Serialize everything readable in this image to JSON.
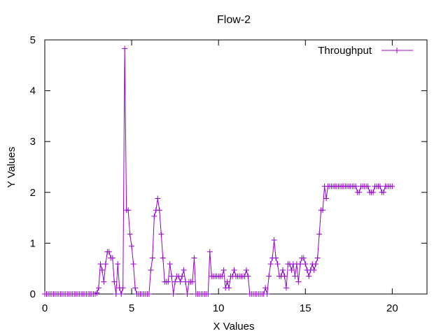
{
  "chart_data": {
    "type": "line",
    "title": "Flow-2",
    "xlabel": "X Values",
    "ylabel": "Y Values",
    "xlim": [
      0,
      22
    ],
    "ylim": [
      0,
      5
    ],
    "xticks": [
      0,
      5,
      10,
      15,
      20
    ],
    "yticks": [
      0,
      1,
      2,
      3,
      4,
      5
    ],
    "grid": false,
    "legend": "top-right",
    "series": [
      {
        "name": "Throughput",
        "color": "#9400d3",
        "marker": "plus",
        "x": [
          0,
          0.1,
          0.2,
          0.3,
          0.4,
          0.5,
          0.6,
          0.7,
          0.8,
          0.9,
          1.0,
          1.1,
          1.2,
          1.3,
          1.4,
          1.5,
          1.6,
          1.7,
          1.8,
          1.9,
          2.0,
          2.1,
          2.2,
          2.3,
          2.4,
          2.5,
          2.6,
          2.7,
          2.8,
          2.9,
          3.0,
          3.1,
          3.2,
          3.3,
          3.4,
          3.5,
          3.6,
          3.7,
          3.8,
          3.9,
          4.0,
          4.1,
          4.2,
          4.3,
          4.4,
          4.5,
          4.6,
          4.7,
          4.8,
          4.9,
          5.0,
          5.1,
          5.2,
          5.3,
          5.4,
          5.5,
          5.6,
          5.7,
          5.8,
          5.9,
          6.0,
          6.1,
          6.2,
          6.3,
          6.4,
          6.5,
          6.6,
          6.7,
          6.8,
          6.9,
          7.0,
          7.1,
          7.2,
          7.3,
          7.4,
          7.5,
          7.6,
          7.7,
          7.8,
          7.9,
          8.0,
          8.1,
          8.2,
          8.3,
          8.4,
          8.5,
          8.6,
          8.7,
          8.8,
          8.9,
          9.0,
          9.1,
          9.2,
          9.3,
          9.4,
          9.5,
          9.6,
          9.7,
          9.8,
          9.9,
          10.0,
          10.1,
          10.2,
          10.3,
          10.4,
          10.5,
          10.6,
          10.7,
          10.8,
          10.9,
          11.0,
          11.1,
          11.2,
          11.3,
          11.4,
          11.5,
          11.6,
          11.7,
          11.8,
          11.9,
          12.0,
          12.1,
          12.2,
          12.3,
          12.4,
          12.5,
          12.6,
          12.7,
          12.8,
          12.9,
          13.0,
          13.1,
          13.2,
          13.3,
          13.4,
          13.5,
          13.6,
          13.7,
          13.8,
          13.9,
          14.0,
          14.1,
          14.2,
          14.3,
          14.4,
          14.5,
          14.6,
          14.7,
          14.8,
          14.9,
          15.0,
          15.1,
          15.2,
          15.3,
          15.4,
          15.5,
          15.6,
          15.7,
          15.8,
          15.9,
          16.0,
          16.1,
          16.2,
          16.3,
          16.4,
          16.5,
          16.6,
          16.7,
          16.8,
          16.9,
          17.0,
          17.1,
          17.2,
          17.3,
          17.4,
          17.5,
          17.6,
          17.7,
          17.8,
          17.9,
          18.0,
          18.1,
          18.2,
          18.3,
          18.4,
          18.5,
          18.6,
          18.7,
          18.8,
          18.9,
          19.0,
          19.1,
          19.2,
          19.3,
          19.4,
          19.5,
          19.6,
          19.7,
          19.8,
          19.9,
          20.0
        ],
        "y": [
          0,
          0,
          0,
          0,
          0,
          0,
          0,
          0,
          0,
          0,
          0,
          0,
          0,
          0,
          0,
          0,
          0,
          0,
          0,
          0,
          0,
          0,
          0,
          0,
          0,
          0,
          0,
          0,
          0,
          0,
          0.02,
          0.12,
          0.59,
          0.47,
          0.24,
          0.59,
          0.83,
          0.83,
          0.71,
          0.71,
          0.24,
          0.0,
          0.59,
          0.12,
          0.0,
          0.12,
          4.83,
          1.65,
          1.65,
          1.18,
          0.94,
          0.59,
          0.12,
          0.0,
          0.0,
          0.0,
          0.0,
          0.0,
          0.0,
          0.0,
          0.0,
          0.47,
          0.71,
          1.53,
          1.65,
          1.88,
          1.65,
          1.18,
          0.71,
          0.24,
          0.24,
          0.24,
          0.59,
          0.35,
          0.0,
          0.24,
          0.35,
          0.35,
          0.24,
          0.35,
          0.47,
          0.24,
          0.0,
          0.24,
          0.24,
          0.24,
          0.71,
          0.0,
          0.0,
          0.0,
          0.0,
          0.0,
          0.0,
          0.0,
          0.0,
          0.83,
          0.35,
          0.35,
          0.35,
          0.35,
          0.35,
          0.35,
          0.35,
          0.47,
          0.12,
          0.24,
          0.12,
          0.35,
          0.35,
          0.47,
          0.35,
          0.35,
          0.35,
          0.35,
          0.35,
          0.35,
          0.47,
          0.35,
          0.0,
          0.0,
          0.0,
          0.0,
          0.0,
          0.0,
          0.0,
          0.0,
          0.0,
          0.12,
          0.0,
          0.35,
          0.59,
          0.71,
          1.06,
          0.71,
          0.59,
          0.35,
          0.35,
          0.47,
          0.35,
          0.12,
          0.59,
          0.59,
          0.47,
          0.59,
          0.35,
          0.59,
          0.24,
          0.59,
          0.71,
          0.71,
          0.59,
          0.47,
          0.35,
          0.47,
          0.59,
          0.47,
          0.59,
          0.71,
          1.18,
          1.65,
          1.65,
          2.12,
          1.88,
          2.12,
          2.12,
          2.12,
          2.12,
          2.12,
          2.12,
          2.12,
          2.12,
          2.12,
          2.12,
          2.12,
          2.12,
          2.12,
          2.12,
          2.12,
          2.12,
          2.12,
          2.0,
          2.0,
          2.12,
          2.12,
          2.12,
          2.12,
          2.12,
          2.0,
          2.0,
          2.0,
          2.12,
          2.12,
          2.12,
          2.12,
          2.0,
          2.0,
          2.12,
          2.12,
          2.12,
          2.12,
          2.12
        ]
      }
    ]
  }
}
